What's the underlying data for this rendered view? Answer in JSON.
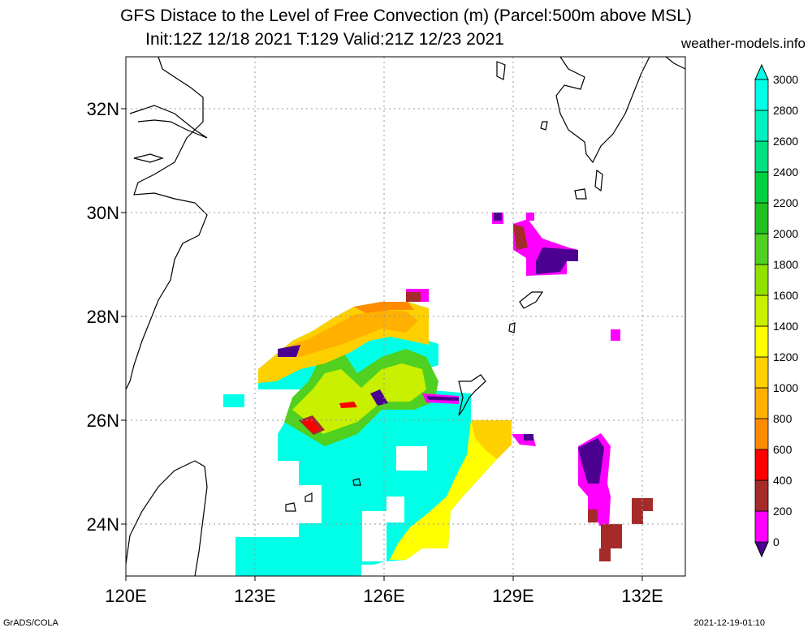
{
  "title_line1": "GFS Distace to the Level of Free Convection (m) (Parcel:500m above MSL)",
  "title_line2": "Init:12Z 12/18 2021 T:129 Valid:21Z 12/23 2021",
  "credit": "weather-models.info",
  "footer_left": "GrADS/COLA",
  "footer_right": "2021-12-19-01:10",
  "map": {
    "lon_range": [
      120,
      133
    ],
    "lat_range": [
      23,
      33
    ],
    "lon_ticks": [
      {
        "value": 120,
        "label": "120E"
      },
      {
        "value": 123,
        "label": "123E"
      },
      {
        "value": 126,
        "label": "126E"
      },
      {
        "value": 129,
        "label": "129E"
      },
      {
        "value": 132,
        "label": "132E"
      }
    ],
    "lat_ticks": [
      {
        "value": 24,
        "label": "24N"
      },
      {
        "value": 26,
        "label": "26N"
      },
      {
        "value": 28,
        "label": "28N"
      },
      {
        "value": 30,
        "label": "30N"
      },
      {
        "value": 32,
        "label": "32N"
      }
    ]
  },
  "colorbar": {
    "labels": [
      "0",
      "200",
      "400",
      "600",
      "800",
      "1000",
      "1200",
      "1400",
      "1600",
      "1800",
      "2000",
      "2200",
      "2400",
      "2600",
      "2800",
      "3000"
    ],
    "colors": [
      "#4b0090",
      "#ff00ff",
      "#a52a2a",
      "#ff0000",
      "#ff8c00",
      "#ffb000",
      "#ffd000",
      "#ffff00",
      "#c8f000",
      "#90e000",
      "#50d020",
      "#20c020",
      "#00d040",
      "#00e080",
      "#00f0c0",
      "#00ffe6"
    ],
    "min_color": "#4b0090",
    "max_color": "#00ffe6"
  },
  "fields": {
    "cyan": "#00ffe6",
    "aqua": "#00f0c0",
    "green": "#50d020",
    "lime": "#c8f000",
    "yellow": "#ffff00",
    "gold": "#ffd000",
    "orange": "#ffb000",
    "darkorange": "#ff8c00",
    "red": "#ff0000",
    "brown": "#a52a2a",
    "magenta": "#ff00ff",
    "purple": "#4b0090"
  }
}
